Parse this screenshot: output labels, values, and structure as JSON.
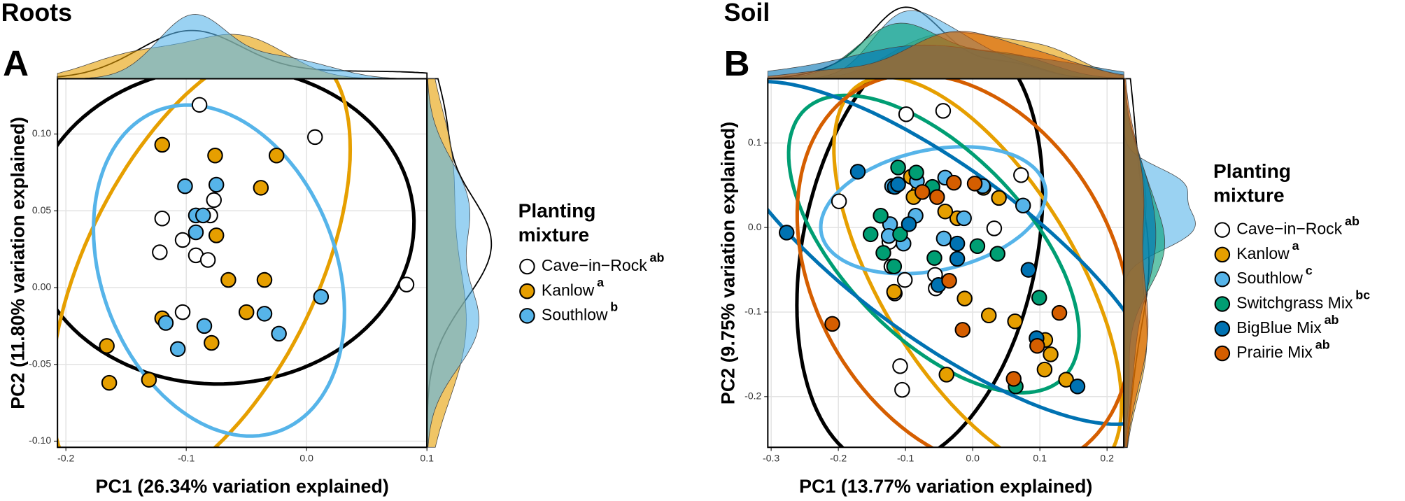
{
  "chart_data": [
    {
      "type": "scatter",
      "title": "Roots",
      "panel_label": "A",
      "x_label": "PC1 (26.34% variation explained)",
      "y_label": "PC2 (11.80% variation explained)",
      "xlim": [
        -0.207,
        0.1
      ],
      "ylim": [
        -0.104,
        0.136
      ],
      "xticks": [
        -0.2,
        -0.1,
        {
          "value": 0,
          "label": "0.0"
        },
        0.1
      ],
      "yticks": [
        {
          "value": -0.1,
          "label": "-0.10"
        },
        {
          "value": -0.05,
          "label": "-0.05"
        },
        {
          "value": 0,
          "label": "0.00"
        },
        {
          "value": 0.05,
          "label": "0.05"
        },
        {
          "value": 0.1,
          "label": "0.10"
        }
      ],
      "grid": true,
      "legend_title": [
        "Planting",
        "mixture"
      ],
      "series": [
        {
          "name": "Cave−in−Rock",
          "superscript": "ab",
          "color": "#ffffff",
          "x": [
            -0.089,
            0.007,
            -0.12,
            -0.077,
            -0.08,
            -0.103,
            -0.122,
            -0.092,
            -0.082,
            -0.103,
            0.083
          ],
          "values": [
            0.119,
            0.098,
            0.045,
            0.057,
            0.047,
            0.031,
            0.023,
            0.021,
            0.018,
            -0.016,
            0.002
          ]
        },
        {
          "name": "Kanlow",
          "superscript": "a",
          "color": "#E69F00",
          "x": [
            -0.12,
            -0.076,
            -0.025,
            -0.038,
            -0.075,
            -0.065,
            -0.035,
            -0.05,
            -0.12,
            -0.079,
            -0.166,
            -0.131,
            -0.164
          ],
          "values": [
            0.093,
            0.086,
            0.086,
            0.065,
            0.034,
            0.005,
            0.005,
            -0.016,
            -0.02,
            -0.036,
            -0.038,
            -0.06,
            -0.062
          ]
        },
        {
          "name": "Southlow",
          "superscript": "b",
          "color": "#56B4E9",
          "x": [
            -0.101,
            -0.075,
            -0.092,
            -0.086,
            -0.092,
            0.012,
            -0.035,
            -0.117,
            -0.085,
            -0.023,
            -0.107
          ],
          "values": [
            0.066,
            0.067,
            0.047,
            0.047,
            0.036,
            -0.006,
            -0.017,
            -0.023,
            -0.025,
            -0.03,
            -0.04
          ]
        }
      ]
    },
    {
      "type": "scatter",
      "title": "Soil",
      "panel_label": "B",
      "x_label": "PC1 (13.77% variation explained)",
      "y_label": "PC2 (9.75% variation explained)",
      "xlim": [
        -0.305,
        0.225
      ],
      "ylim": [
        -0.26,
        0.176
      ],
      "xticks": [
        -0.3,
        -0.2,
        -0.1,
        {
          "value": 0,
          "label": "0.0"
        },
        0.1,
        0.2
      ],
      "yticks": [
        -0.2,
        -0.1,
        {
          "value": 0,
          "label": "0.0"
        },
        0.1
      ],
      "grid": true,
      "legend_title": [
        "Planting",
        "mixture"
      ],
      "series": [
        {
          "name": "Cave−in−Rock",
          "superscript": "ab",
          "color": "#ffffff",
          "x": [
            -0.099,
            -0.044,
            0.072,
            -0.199,
            0.032,
            -0.121,
            -0.056,
            -0.055,
            -0.101,
            -0.116,
            -0.108,
            -0.105,
            -0.124
          ],
          "values": [
            0.134,
            0.138,
            0.062,
            0.031,
            -0.001,
            -0.046,
            -0.056,
            -0.072,
            -0.062,
            -0.078,
            -0.164,
            -0.192,
            -0.017
          ]
        },
        {
          "name": "Kanlow",
          "superscript": "a",
          "color": "#E69F00",
          "x": [
            -0.092,
            -0.081,
            -0.023,
            -0.041,
            0.016,
            0.039,
            -0.012,
            0.024,
            0.063,
            0.108,
            0.116,
            0.107,
            0.139,
            -0.039,
            -0.117,
            -0.088
          ],
          "values": [
            0.06,
            0.042,
            0.011,
            0.019,
            0.047,
            0.035,
            -0.084,
            -0.104,
            -0.111,
            -0.133,
            -0.15,
            -0.168,
            -0.18,
            -0.174,
            -0.076,
            0.036
          ]
        },
        {
          "name": "Southlow",
          "superscript": "c",
          "color": "#56B4E9",
          "x": [
            -0.12,
            -0.083,
            -0.041,
            -0.085,
            -0.123,
            -0.125,
            -0.103,
            -0.043,
            0.075,
            0.015,
            -0.013
          ],
          "values": [
            0.049,
            0.055,
            0.059,
            0.014,
            0.004,
            -0.01,
            -0.019,
            -0.013,
            0.026,
            0.049,
            0.011
          ]
        },
        {
          "name": "Switchgrass Mix",
          "superscript": "bc",
          "color": "#009E73",
          "x": [
            -0.111,
            -0.084,
            -0.06,
            -0.137,
            -0.108,
            -0.133,
            -0.117,
            0.007,
            0.037,
            -0.057,
            0.099,
            0.064,
            -0.152
          ],
          "values": [
            0.071,
            0.065,
            0.048,
            0.014,
            -0.008,
            -0.03,
            -0.046,
            -0.022,
            -0.031,
            -0.036,
            -0.083,
            -0.188,
            -0.008
          ]
        },
        {
          "name": "BigBlue Mix",
          "superscript": "ab",
          "color": "#0072B2",
          "x": [
            -0.171,
            -0.116,
            -0.277,
            -0.095,
            -0.023,
            -0.023,
            0.083,
            0.095,
            0.156,
            -0.051,
            -0.111
          ],
          "values": [
            0.066,
            0.048,
            -0.006,
            0.004,
            -0.019,
            -0.037,
            -0.05,
            -0.131,
            -0.188,
            -0.068,
            0.051
          ]
        },
        {
          "name": "Prairie Mix",
          "superscript": "ab",
          "color": "#D55E00",
          "x": [
            -0.209,
            -0.075,
            -0.028,
            -0.035,
            -0.015,
            0.129,
            0.096,
            0.061,
            0.003,
            -0.053
          ],
          "values": [
            -0.114,
            0.042,
            0.053,
            -0.063,
            -0.121,
            -0.101,
            -0.14,
            -0.179,
            0.052,
            0.036
          ]
        }
      ]
    }
  ]
}
